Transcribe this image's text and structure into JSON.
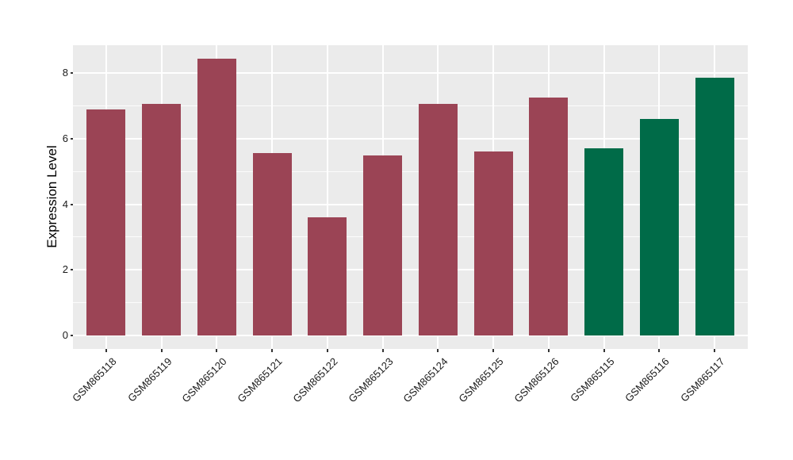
{
  "chart_data": {
    "type": "bar",
    "title": "",
    "xlabel": "",
    "ylabel": "Expression Level",
    "categories": [
      "GSM865118",
      "GSM865119",
      "GSM865120",
      "GSM865121",
      "GSM865122",
      "GSM865123",
      "GSM865124",
      "GSM865125",
      "GSM865126",
      "GSM865115",
      "GSM865116",
      "GSM865117"
    ],
    "values": [
      6.9,
      7.05,
      8.45,
      5.55,
      3.6,
      5.5,
      7.05,
      5.62,
      7.25,
      5.71,
      6.6,
      7.85
    ],
    "bar_colors": [
      "#9B4455",
      "#9B4455",
      "#9B4455",
      "#9B4455",
      "#9B4455",
      "#9B4455",
      "#9B4455",
      "#9B4455",
      "#9B4455",
      "#006B48",
      "#006B48",
      "#006B48"
    ],
    "group_colors": {
      "maroon_group": "#9B4455",
      "green_group": "#006B48"
    },
    "yticks": [
      0,
      2,
      4,
      6,
      8
    ],
    "yticks_minor": [
      1,
      3,
      5,
      7
    ],
    "ylim": [
      -0.41,
      8.85
    ],
    "bar_width_frac": 0.7,
    "x_expand": 0.6,
    "legend_position": "none",
    "grid_on": true,
    "panel_background": "#EBEBEB",
    "gridline_color": "#FFFFFF",
    "tick_mark_color": "#333333",
    "axis_text_color": "#1A1A1A",
    "axis_title_color": "#000000",
    "figure_background": "#FFFFFF"
  }
}
